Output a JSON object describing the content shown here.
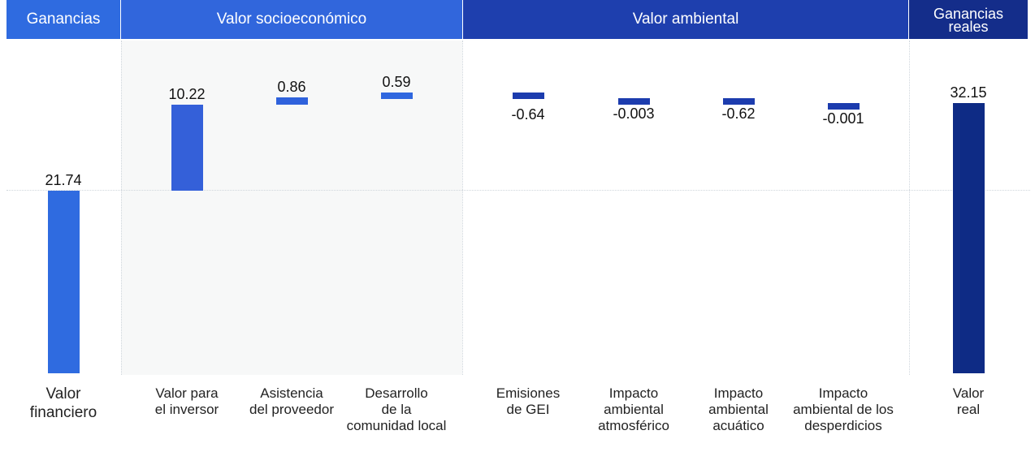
{
  "chart_data": {
    "type": "bar",
    "subtype": "waterfall",
    "groups": [
      {
        "label": "Ganancias",
        "color": "#2f6be0"
      },
      {
        "label": "Valor socioeconómico",
        "color": "#3166dc"
      },
      {
        "label": "Valor ambiental",
        "color": "#1e3fae"
      },
      {
        "label": "Ganancias\nreales",
        "color": "#142d8a"
      }
    ],
    "categories": [
      "Valor\nfinanciero",
      "Valor para\nel inversor",
      "Asistencia\ndel proveedor",
      "Desarrollo\nde la\ncomunidad local",
      "Emisiones\nde GEI",
      "Impacto\nambiental\natmosférico",
      "Impacto\nambiental\nacuático",
      "Impacto\nambiental de los\ndesperdicios",
      "Valor\nreal"
    ],
    "values": [
      21.74,
      10.22,
      0.86,
      0.59,
      -0.64,
      -0.003,
      -0.62,
      -0.001,
      32.15
    ],
    "value_labels": [
      "21.74",
      "10.22",
      "0.86",
      "0.59",
      "-0.64",
      "-0.003",
      "-0.62",
      "-0.001",
      "32.15"
    ],
    "bar_kind": [
      "total",
      "delta",
      "delta",
      "delta",
      "delta",
      "delta",
      "delta",
      "delta",
      "total"
    ],
    "bar_colors": [
      "#2f6be0",
      "#3460d9",
      "#2f62dc",
      "#2f67df",
      "#1c3cae",
      "#1c3cae",
      "#1c3cae",
      "#1c3cae",
      "#0e2b85"
    ],
    "reference_line": 21.74,
    "grid": false,
    "legend": "none"
  }
}
